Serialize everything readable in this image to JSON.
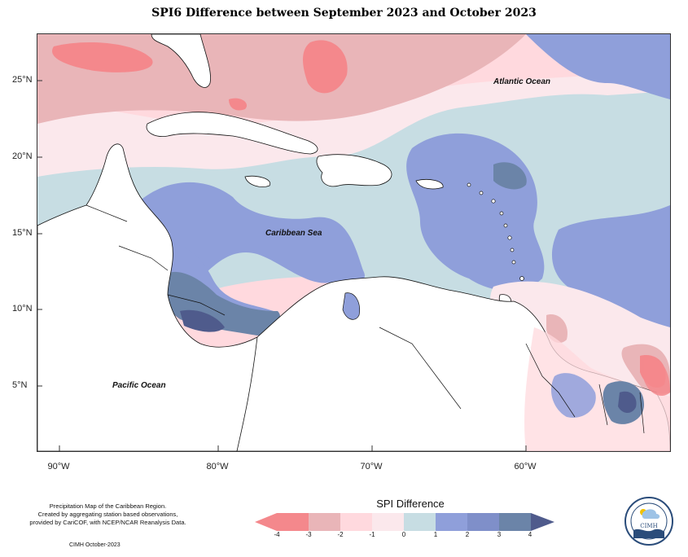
{
  "title": "SPI6 Difference between September 2023 and October 2023",
  "map": {
    "ocean_labels": {
      "atlantic": "Atlantic Ocean",
      "caribbean": "Caribbean Sea",
      "pacific": "Pacific Ocean"
    },
    "latitude_ticks": [
      "25°N",
      "20°N",
      "15°N",
      "10°N",
      "5°N"
    ],
    "longitude_ticks": [
      "90°W",
      "80°W",
      "70°W",
      "60°W"
    ],
    "color_scale": {
      "neg4": "#f4888c",
      "neg3": "#e9b5b8",
      "neg2": "#ffd9de",
      "neg1": "#fbe8ec",
      "zero": "#c7dde3",
      "pos1": "#8f9fda",
      "pos2": "#7f8fc9",
      "pos3": "#6b84a8",
      "pos4": "#4f5b8c",
      "land": "#ffffff"
    }
  },
  "legend": {
    "title": "SPI Difference",
    "labels": [
      "-4",
      "-3",
      "-2",
      "-1",
      "0",
      "1",
      "2",
      "3",
      "4"
    ]
  },
  "credits": {
    "line1": "Precipitation Map of the Caribbean Region.",
    "line2": "Created by aggregating station based observations,",
    "line3": "provided by CariCOF, with NCEP/NCAR Reanalysis Data.",
    "date": "CIMH October-2023"
  },
  "logo": {
    "text": "CIMH"
  }
}
